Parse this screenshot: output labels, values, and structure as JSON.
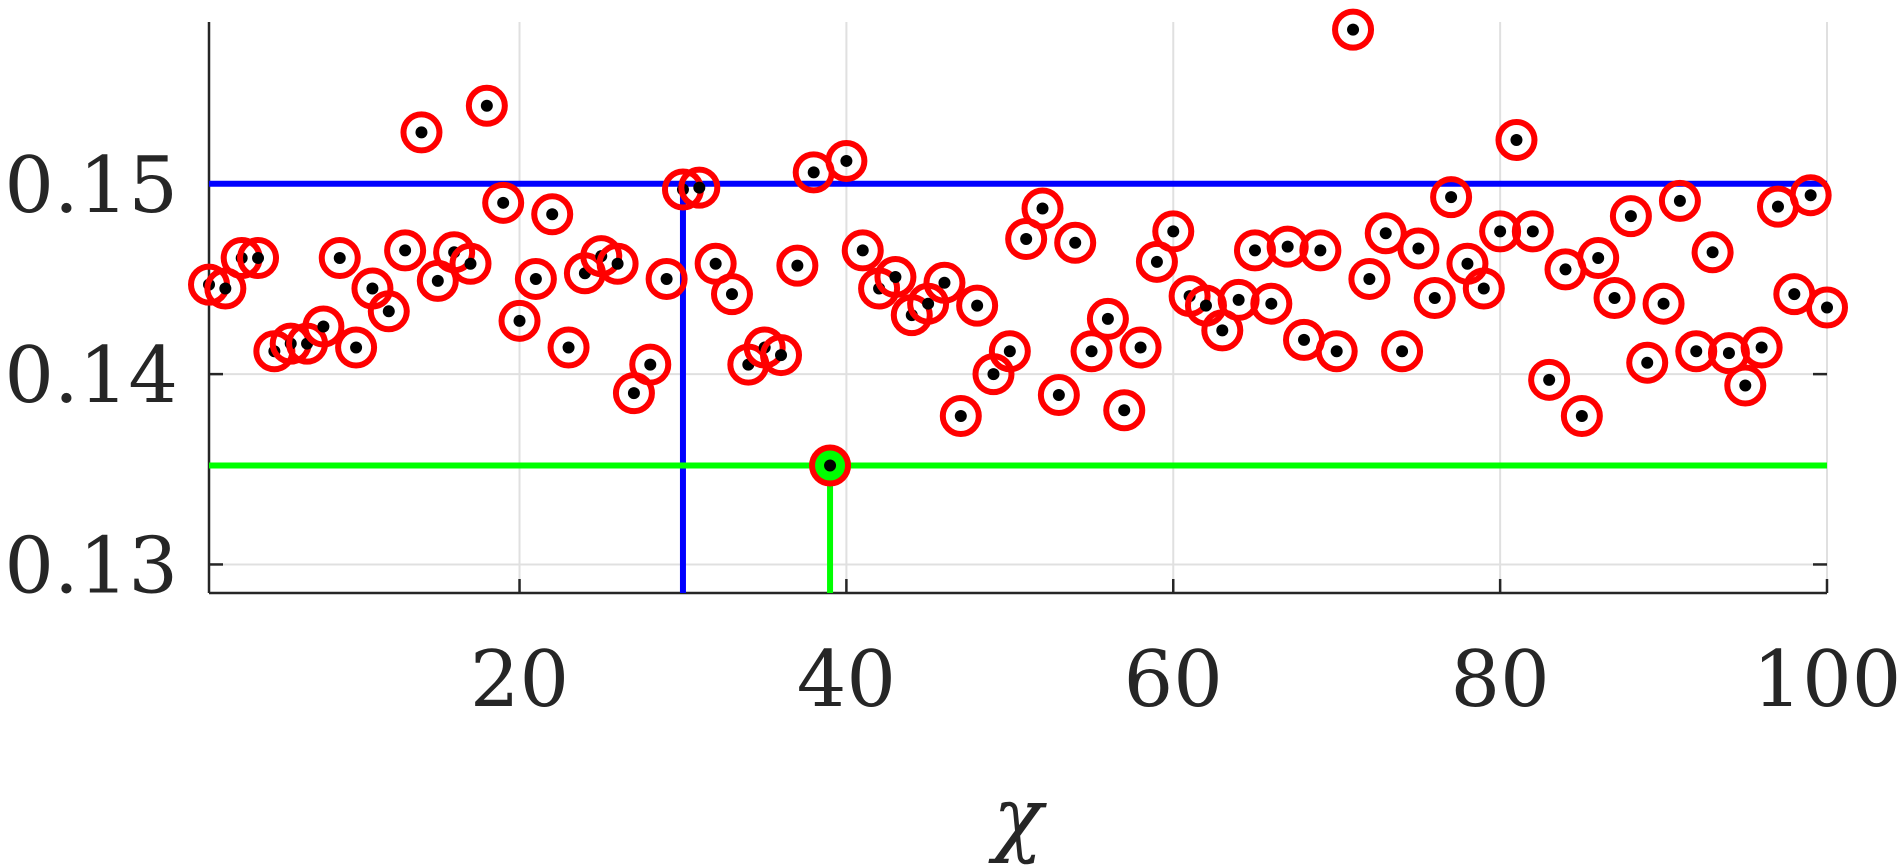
{
  "chart_data": {
    "type": "scatter",
    "title": "",
    "xlabel": "χ",
    "ylabel": "",
    "xlim": [
      1,
      100
    ],
    "ylim": [
      0.1285,
      0.1585
    ],
    "xticks": [
      20,
      40,
      60,
      80,
      100
    ],
    "xtick_labels": [
      "20",
      "40",
      "60",
      "80",
      "100"
    ],
    "yticks": [
      0.13,
      0.14,
      0.15
    ],
    "ytick_labels": [
      "0.13",
      "0.14",
      "0.15"
    ],
    "grid": true,
    "colors": {
      "marker_ring": "#ff0000",
      "marker_dot": "#000000",
      "threshold_line": "#0000ff",
      "best_line": "#00ff00",
      "grid": "#e0e0e0",
      "axis": "#262626"
    },
    "series": [
      {
        "x": [
          1,
          2,
          3,
          4,
          5,
          6,
          7,
          8,
          9,
          10,
          11,
          12,
          13,
          14,
          15,
          16,
          17,
          18,
          19,
          20,
          21,
          22,
          23,
          24,
          25,
          26,
          27,
          28,
          29,
          30,
          31,
          32,
          33,
          34,
          35,
          36,
          37,
          38,
          39,
          40,
          41,
          42,
          43,
          44,
          45,
          46,
          47,
          48,
          49,
          50,
          51,
          52,
          53,
          54,
          55,
          56,
          57,
          58,
          59,
          60,
          61,
          62,
          63,
          64,
          65,
          66,
          67,
          68,
          69,
          70,
          71,
          72,
          73,
          74,
          75,
          76,
          77,
          78,
          79,
          80,
          81,
          82,
          83,
          84,
          85,
          86,
          87,
          88,
          89,
          90,
          91,
          92,
          93,
          94,
          95,
          96,
          97,
          98,
          99,
          100
        ],
        "y": [
          0.1447,
          0.1445,
          0.1461,
          0.1461,
          0.1412,
          0.1416,
          0.1416,
          0.1425,
          0.1461,
          0.1414,
          0.1445,
          0.1433,
          0.1465,
          0.1527,
          0.1449,
          0.1464,
          0.1458,
          0.1541,
          0.149,
          0.1428,
          0.145,
          0.1484,
          0.1414,
          0.1453,
          0.1462,
          0.1458,
          0.139,
          0.1405,
          0.145,
          0.1497,
          0.1498,
          0.1458,
          0.1442,
          0.1405,
          0.1414,
          0.141,
          0.1457,
          0.1506,
          0.1352,
          0.1512,
          0.1465,
          0.1445,
          0.1451,
          0.1431,
          0.1437,
          0.1448,
          0.1378,
          0.1436,
          0.14,
          0.1412,
          0.1471,
          0.1487,
          0.1389,
          0.1469,
          0.1412,
          0.1429,
          0.1381,
          0.1414,
          0.1459,
          0.1475,
          0.1441,
          0.1436,
          0.1423,
          0.1439,
          0.1465,
          0.1437,
          0.1467,
          0.1418,
          0.1465,
          0.1412,
          0.1581,
          0.145,
          0.1474,
          0.1412,
          0.1466,
          0.144,
          0.1493,
          0.1458,
          0.1445,
          0.1475,
          0.1523,
          0.1475,
          0.1397,
          0.1455,
          0.1378,
          0.1461,
          0.144,
          0.1483,
          0.1406,
          0.1437,
          0.1491,
          0.1412,
          0.1464,
          0.1411,
          0.1394,
          0.1414,
          0.1488,
          0.1442,
          0.1494,
          0.1435
        ]
      }
    ],
    "annotations": {
      "threshold_y": 0.15,
      "threshold_x": 30,
      "best_point": {
        "x": 39,
        "y": 0.1352
      }
    }
  }
}
